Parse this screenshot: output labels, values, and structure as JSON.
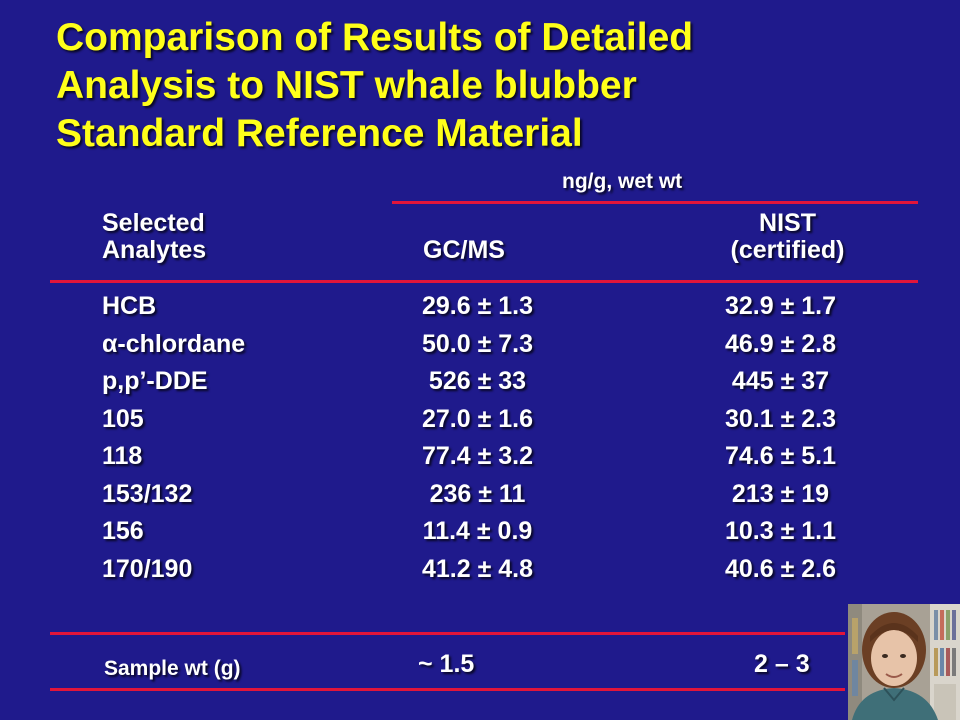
{
  "title": {
    "line1": "Comparison of Results of Detailed",
    "line2": "Analysis to NIST whale blubber",
    "line3": "Standard Reference Material"
  },
  "unit_label": "ng/g, wet wt",
  "headers": {
    "analytes_line1": "Selected",
    "analytes_line2": "Analytes",
    "gcms": "GC/MS",
    "nist_line1": "NIST",
    "nist_line2": "(certified)"
  },
  "rows": [
    {
      "analyte": "HCB",
      "gcms": "29.6 ± 1.3",
      "nist": "32.9 ± 1.7"
    },
    {
      "analyte": "α-chlordane",
      "gcms": "50.0 ± 7.3",
      "nist": "46.9 ± 2.8"
    },
    {
      "analyte": "p,p’-DDE",
      "gcms": "526 ± 33",
      "nist": "445 ± 37"
    },
    {
      "analyte": "105",
      "gcms": "27.0 ± 1.6",
      "nist": "30.1 ± 2.3"
    },
    {
      "analyte": "118",
      "gcms": "77.4 ± 3.2",
      "nist": "74.6 ± 5.1"
    },
    {
      "analyte": "153/132",
      "gcms": "236 ± 11",
      "nist": "213 ± 19"
    },
    {
      "analyte": "156",
      "gcms": "11.4 ± 0.9",
      "nist": "10.3 ± 1.1"
    },
    {
      "analyte": "170/190",
      "gcms": "41.2 ± 4.8",
      "nist": "40.6 ± 2.6"
    }
  ],
  "sample": {
    "label": "Sample wt (g)",
    "gcms": "~ 1.5",
    "nist": "2 – 3"
  },
  "colors": {
    "background": "#1f1a8c",
    "title": "#ffff1a",
    "rule": "#e2153a",
    "text": "#ffffff"
  },
  "photo": {
    "icon": "person-portrait"
  }
}
